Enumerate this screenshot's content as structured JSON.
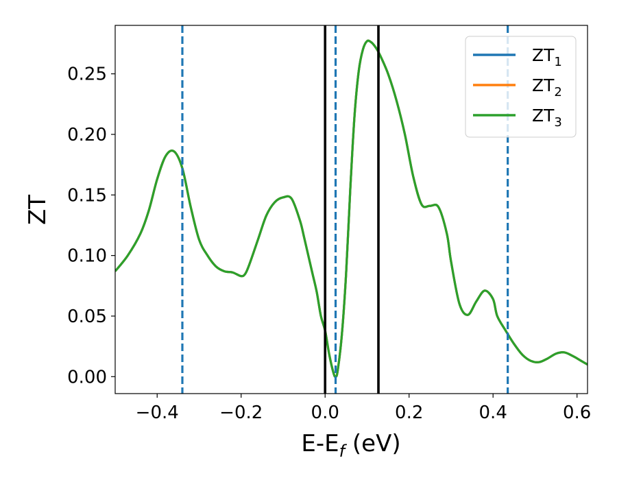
{
  "chart_data": {
    "type": "line",
    "title": "",
    "xlabel": "E-E",
    "xlabel_subscript": "f",
    "xlabel_unit": "(eV)",
    "ylabel": "ZT",
    "xlim": [
      -0.5,
      0.625
    ],
    "ylim": [
      -0.014,
      0.29
    ],
    "xticks": [
      -0.4,
      -0.2,
      0.0,
      0.2,
      0.4,
      0.6
    ],
    "xtick_labels": [
      "−0.4",
      "−0.2",
      "0.0",
      "0.2",
      "0.4",
      "0.6"
    ],
    "yticks": [
      0.0,
      0.05,
      0.1,
      0.15,
      0.2,
      0.25
    ],
    "ytick_labels": [
      "0.00",
      "0.05",
      "0.10",
      "0.15",
      "0.20",
      "0.25"
    ],
    "grid": false,
    "legend_position": "top-right",
    "x": [
      -0.5,
      -0.47,
      -0.44,
      -0.42,
      -0.4,
      -0.38,
      -0.36,
      -0.34,
      -0.32,
      -0.3,
      -0.28,
      -0.26,
      -0.24,
      -0.22,
      -0.2,
      -0.19,
      -0.18,
      -0.16,
      -0.14,
      -0.12,
      -0.1,
      -0.08,
      -0.06,
      -0.05,
      -0.04,
      -0.03,
      -0.02,
      -0.01,
      0.0,
      0.01,
      0.02,
      0.025,
      0.03,
      0.04,
      0.05,
      0.06,
      0.07,
      0.08,
      0.09,
      0.1,
      0.11,
      0.12,
      0.13,
      0.15,
      0.17,
      0.19,
      0.21,
      0.23,
      0.25,
      0.27,
      0.29,
      0.3,
      0.32,
      0.34,
      0.36,
      0.38,
      0.4,
      0.41,
      0.43,
      0.45,
      0.47,
      0.49,
      0.51,
      0.53,
      0.55,
      0.57,
      0.59,
      0.61,
      0.625
    ],
    "series": [
      {
        "name": "ZT",
        "name_subscript": "1",
        "color": "#1f77b4",
        "values": [
          0.087,
          0.1,
          0.118,
          0.137,
          0.163,
          0.182,
          0.186,
          0.172,
          0.14,
          0.113,
          0.1,
          0.091,
          0.087,
          0.086,
          0.083,
          0.085,
          0.093,
          0.113,
          0.133,
          0.144,
          0.148,
          0.147,
          0.129,
          0.115,
          0.1,
          0.085,
          0.07,
          0.05,
          0.038,
          0.018,
          0.003,
          0.0,
          0.005,
          0.035,
          0.085,
          0.155,
          0.215,
          0.252,
          0.27,
          0.277,
          0.276,
          0.272,
          0.266,
          0.25,
          0.228,
          0.2,
          0.165,
          0.142,
          0.141,
          0.14,
          0.118,
          0.095,
          0.06,
          0.051,
          0.062,
          0.071,
          0.064,
          0.05,
          0.038,
          0.027,
          0.018,
          0.013,
          0.012,
          0.015,
          0.019,
          0.02,
          0.017,
          0.013,
          0.01
        ]
      },
      {
        "name": "ZT",
        "name_subscript": "2",
        "color": "#ff7f0e",
        "values": [
          0.087,
          0.1,
          0.118,
          0.137,
          0.163,
          0.182,
          0.186,
          0.172,
          0.14,
          0.113,
          0.1,
          0.091,
          0.087,
          0.086,
          0.083,
          0.085,
          0.093,
          0.113,
          0.133,
          0.144,
          0.148,
          0.147,
          0.129,
          0.115,
          0.1,
          0.085,
          0.07,
          0.05,
          0.038,
          0.018,
          0.003,
          0.0,
          0.005,
          0.035,
          0.085,
          0.155,
          0.215,
          0.252,
          0.27,
          0.277,
          0.276,
          0.272,
          0.266,
          0.25,
          0.228,
          0.2,
          0.165,
          0.142,
          0.141,
          0.14,
          0.118,
          0.095,
          0.06,
          0.051,
          0.062,
          0.071,
          0.064,
          0.05,
          0.038,
          0.027,
          0.018,
          0.013,
          0.012,
          0.015,
          0.019,
          0.02,
          0.017,
          0.013,
          0.01
        ]
      },
      {
        "name": "ZT",
        "name_subscript": "3",
        "color": "#2ca02c",
        "values": [
          0.087,
          0.1,
          0.118,
          0.137,
          0.163,
          0.182,
          0.186,
          0.172,
          0.14,
          0.113,
          0.1,
          0.091,
          0.087,
          0.086,
          0.083,
          0.085,
          0.093,
          0.113,
          0.133,
          0.144,
          0.148,
          0.147,
          0.129,
          0.115,
          0.1,
          0.085,
          0.07,
          0.05,
          0.038,
          0.018,
          0.003,
          0.0,
          0.005,
          0.035,
          0.085,
          0.155,
          0.215,
          0.252,
          0.27,
          0.277,
          0.276,
          0.272,
          0.266,
          0.25,
          0.228,
          0.2,
          0.165,
          0.142,
          0.141,
          0.14,
          0.118,
          0.095,
          0.06,
          0.051,
          0.062,
          0.071,
          0.064,
          0.05,
          0.038,
          0.027,
          0.018,
          0.013,
          0.012,
          0.015,
          0.019,
          0.02,
          0.017,
          0.013,
          0.01
        ]
      }
    ],
    "vertical_lines": [
      {
        "x": -0.34,
        "style": "dashed",
        "color": "#1f77b4"
      },
      {
        "x": 0.025,
        "style": "dashed",
        "color": "#1f77b4"
      },
      {
        "x": 0.435,
        "style": "dashed",
        "color": "#1f77b4"
      },
      {
        "x": 0.0,
        "style": "solid",
        "color": "#000000"
      },
      {
        "x": 0.127,
        "style": "solid",
        "color": "#000000"
      }
    ]
  }
}
